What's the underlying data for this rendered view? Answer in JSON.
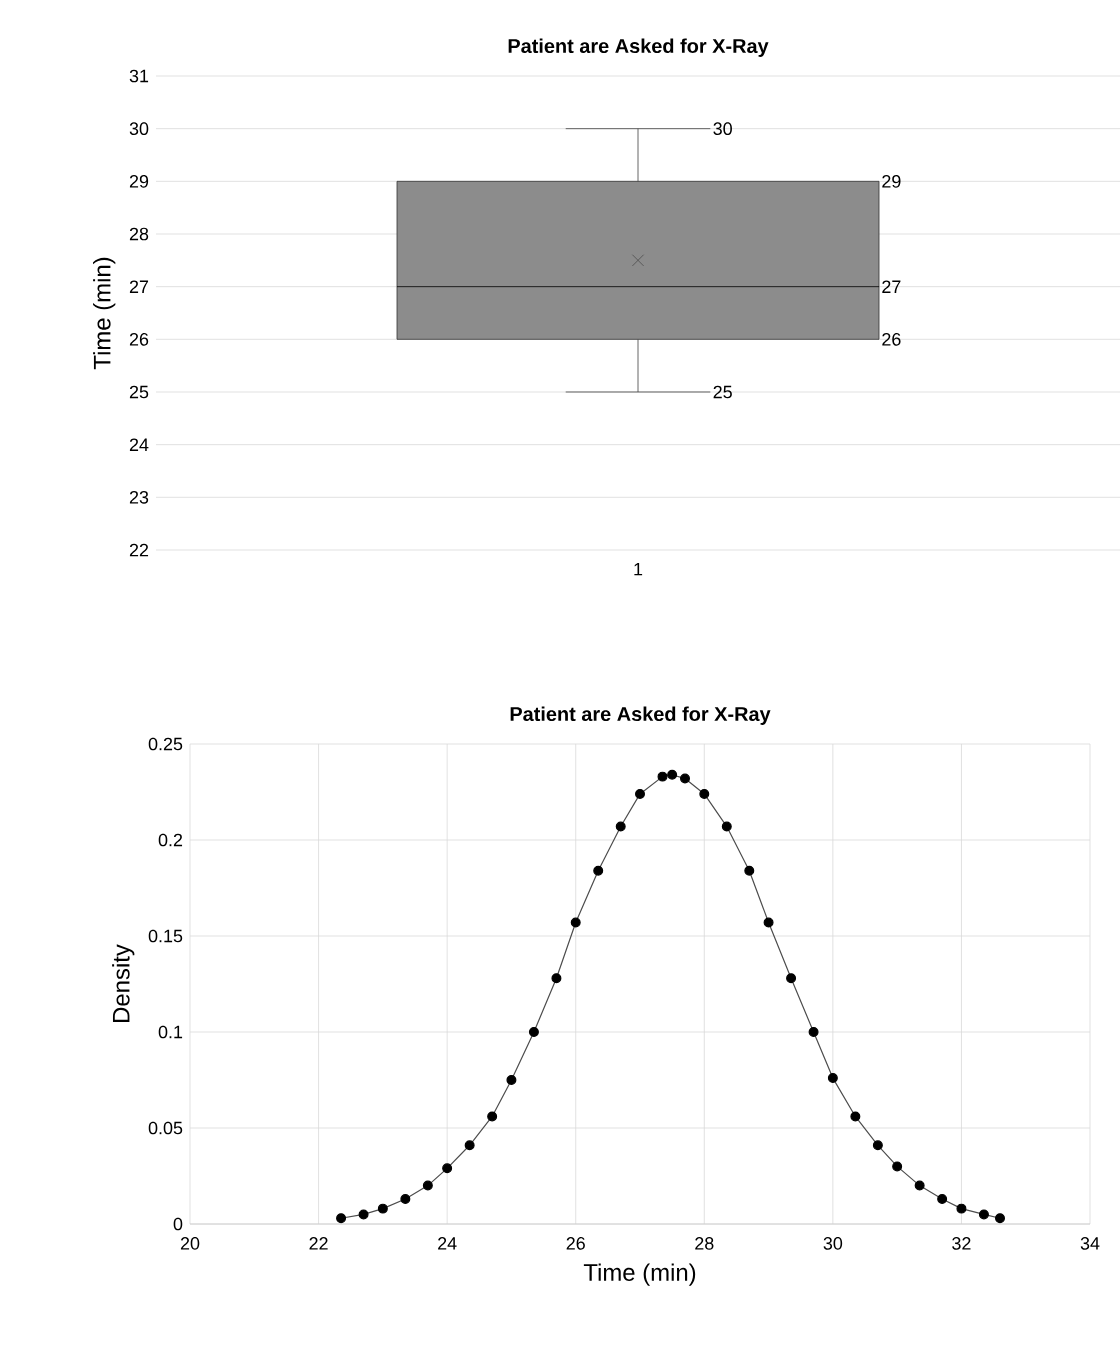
{
  "chart_data": [
    {
      "type": "box",
      "title": "Patient are Asked for X-Ray",
      "ylabel": "Time (min)",
      "categories": [
        "1"
      ],
      "boxes": [
        {
          "low": 25,
          "q1": 26,
          "median": 27,
          "q3": 29,
          "high": 30,
          "mean": 27.5
        }
      ],
      "annotations": [
        "30",
        "29",
        "27",
        "26",
        "25"
      ],
      "color": "#8c8c8c",
      "ylim": [
        22,
        31
      ],
      "yticks": [
        22,
        23,
        24,
        25,
        26,
        27,
        28,
        29,
        30,
        31
      ],
      "grid": "y"
    },
    {
      "type": "line",
      "title": "Patient are Asked for X-Ray",
      "xlabel": "Time (min)",
      "ylabel": "Density",
      "series": [
        {
          "color": "#000000",
          "x": [
            22.35,
            22.7,
            23.0,
            23.35,
            23.7,
            24.0,
            24.35,
            24.7,
            25.0,
            25.35,
            25.7,
            26.0,
            26.35,
            26.7,
            27.0,
            27.35,
            27.5,
            27.7,
            28.0,
            28.35,
            28.7,
            29.0,
            29.35,
            29.7,
            30.0,
            30.35,
            30.7,
            31.0,
            31.35,
            31.7,
            32.0,
            32.35,
            32.6
          ],
          "values": [
            0.003,
            0.005,
            0.008,
            0.013,
            0.02,
            0.029,
            0.041,
            0.056,
            0.075,
            0.1,
            0.128,
            0.157,
            0.184,
            0.207,
            0.224,
            0.233,
            0.234,
            0.232,
            0.224,
            0.207,
            0.184,
            0.157,
            0.128,
            0.1,
            0.076,
            0.056,
            0.041,
            0.03,
            0.02,
            0.013,
            0.008,
            0.005,
            0.003
          ]
        }
      ],
      "xlim": [
        20,
        34
      ],
      "xticks": [
        20,
        22,
        24,
        26,
        28,
        30,
        32,
        34
      ],
      "ylim": [
        0,
        0.25
      ],
      "yticks": [
        0,
        0.05,
        0.1,
        0.15,
        0.2,
        0.25
      ],
      "grid": true,
      "marker": "circle",
      "line_style": "solid"
    }
  ]
}
